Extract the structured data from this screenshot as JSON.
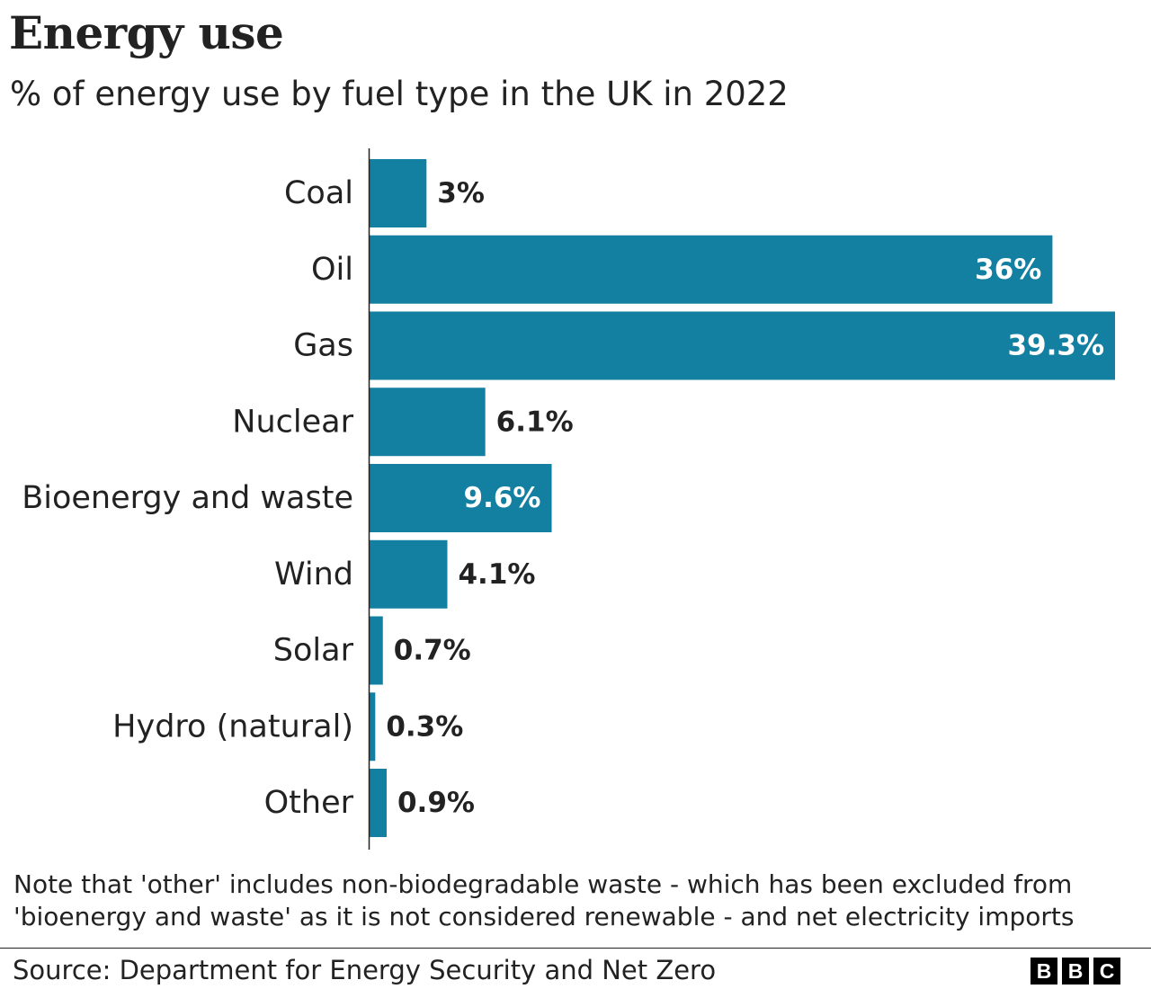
{
  "header": {
    "title": "Energy use",
    "subtitle": "% of energy use by fuel type in the UK in 2022"
  },
  "chart_data": {
    "type": "bar",
    "orientation": "horizontal",
    "title": "Energy use",
    "subtitle": "% of energy use by fuel type in the UK in 2022",
    "categories": [
      "Coal",
      "Oil",
      "Gas",
      "Nuclear",
      "Bioenergy and waste",
      "Wind",
      "Solar",
      "Hydro (natural)",
      "Other"
    ],
    "values": [
      3,
      36,
      39.3,
      6.1,
      9.6,
      4.1,
      0.7,
      0.3,
      0.9
    ],
    "value_labels": [
      "3%",
      "36%",
      "39.3%",
      "6.1%",
      "9.6%",
      "4.1%",
      "0.7%",
      "0.3%",
      "0.9%"
    ],
    "xlim": [
      0,
      39.3
    ],
    "grid": false,
    "legend": "none",
    "bar_color": "#1380a1"
  },
  "footer": {
    "note": "Note that 'other' includes non-biodegradable waste - which has been excluded from 'bioenergy and waste' as it is not considered renewable - and net electricity imports",
    "source": "Source: Department for Energy Security and Net Zero",
    "logo_letters": [
      "B",
      "B",
      "C"
    ]
  },
  "colors": {
    "bar": "#1380a1",
    "text": "#222222",
    "inside_label": "#ffffff"
  }
}
